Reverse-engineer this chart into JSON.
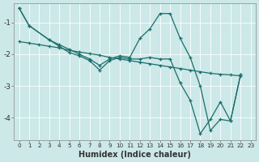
{
  "xlabel": "Humidex (Indice chaleur)",
  "bg_color": "#cce8e8",
  "grid_color": "#ffffff",
  "line_color": "#1a6e6a",
  "xlim": [
    -0.5,
    23.5
  ],
  "ylim": [
    -4.7,
    -0.4
  ],
  "yticks": [
    -4,
    -3,
    -2,
    -1
  ],
  "xticks": [
    0,
    1,
    2,
    3,
    4,
    5,
    6,
    7,
    8,
    9,
    10,
    11,
    12,
    13,
    14,
    15,
    16,
    17,
    18,
    19,
    20,
    21,
    22,
    23
  ],
  "line1_x": [
    0,
    1,
    3,
    4,
    5,
    6,
    7,
    8,
    9,
    10,
    11,
    12,
    13,
    14,
    15,
    16,
    17,
    18,
    19,
    20,
    21,
    22
  ],
  "line1_y": [
    -0.55,
    -1.1,
    -1.55,
    -1.7,
    -1.85,
    -2.0,
    -2.15,
    -2.35,
    -2.15,
    -2.05,
    -2.1,
    -1.5,
    -1.2,
    -0.72,
    -0.72,
    -1.5,
    -2.1,
    -3.0,
    -4.4,
    -4.05,
    -4.1,
    -2.65
  ],
  "line2_x": [
    0,
    1,
    3,
    4,
    5,
    6,
    7,
    8,
    9,
    10,
    11,
    12,
    13,
    14,
    15,
    16,
    17,
    18,
    19,
    20,
    21,
    22
  ],
  "line2_y": [
    -0.55,
    -1.1,
    -1.55,
    -1.75,
    -1.95,
    -2.05,
    -2.2,
    -2.5,
    -2.2,
    -2.1,
    -2.15,
    -2.15,
    -2.1,
    -2.15,
    -2.15,
    -2.9,
    -3.45,
    -4.5,
    -4.05,
    -3.5,
    -4.1,
    -2.65
  ],
  "line3_x": [
    0,
    1,
    2,
    3,
    4,
    5,
    6,
    7,
    8,
    9,
    10,
    11,
    12,
    13,
    14,
    15,
    16,
    17,
    18,
    19,
    20,
    21,
    22
  ],
  "line3_y": [
    -1.6,
    -1.65,
    -1.7,
    -1.75,
    -1.8,
    -1.88,
    -1.93,
    -1.98,
    -2.03,
    -2.1,
    -2.15,
    -2.2,
    -2.25,
    -2.3,
    -2.35,
    -2.4,
    -2.45,
    -2.5,
    -2.55,
    -2.6,
    -2.63,
    -2.65,
    -2.68
  ]
}
